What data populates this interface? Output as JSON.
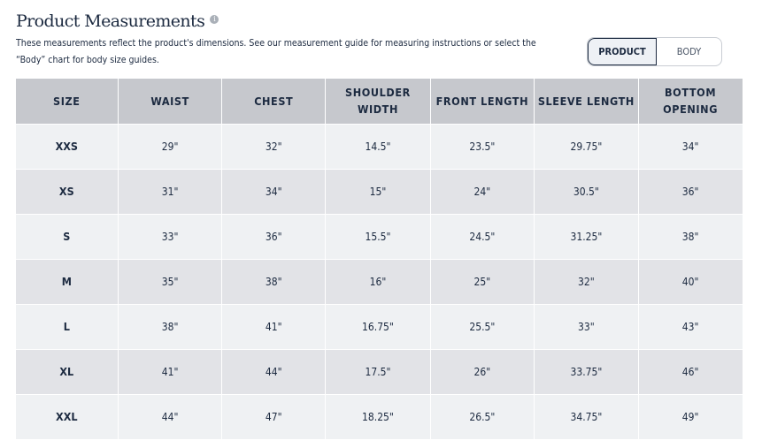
{
  "title": "Product Measurements",
  "description": "These measurements reflect the product's dimensions. See our measurement guide for measuring instructions or select the “Body” chart for body size guides.",
  "toggle": {
    "product": "PRODUCT",
    "body": "BODY",
    "selected": "PRODUCT"
  },
  "table": {
    "headers": [
      "SIZE",
      "WAIST",
      "CHEST",
      "SHOULDER WIDTH",
      "FRONT LENGTH",
      "SLEEVE LENGTH",
      "BOTTOM OPENING"
    ],
    "rows": [
      [
        "XXS",
        "29\"",
        "32\"",
        "14.5\"",
        "23.5\"",
        "29.75\"",
        "34\""
      ],
      [
        "XS",
        "31\"",
        "34\"",
        "15\"",
        "24\"",
        "30.5\"",
        "36\""
      ],
      [
        "S",
        "33\"",
        "36\"",
        "15.5\"",
        "24.5\"",
        "31.25\"",
        "38\""
      ],
      [
        "M",
        "35\"",
        "38\"",
        "16\"",
        "25\"",
        "32\"",
        "40\""
      ],
      [
        "L",
        "38\"",
        "41\"",
        "16.75\"",
        "25.5\"",
        "33\"",
        "43\""
      ],
      [
        "XL",
        "41\"",
        "44\"",
        "17.5\"",
        "26\"",
        "33.75\"",
        "46\""
      ],
      [
        "XXL",
        "44\"",
        "47\"",
        "18.25\"",
        "26.5\"",
        "34.75\"",
        "49\""
      ]
    ]
  }
}
